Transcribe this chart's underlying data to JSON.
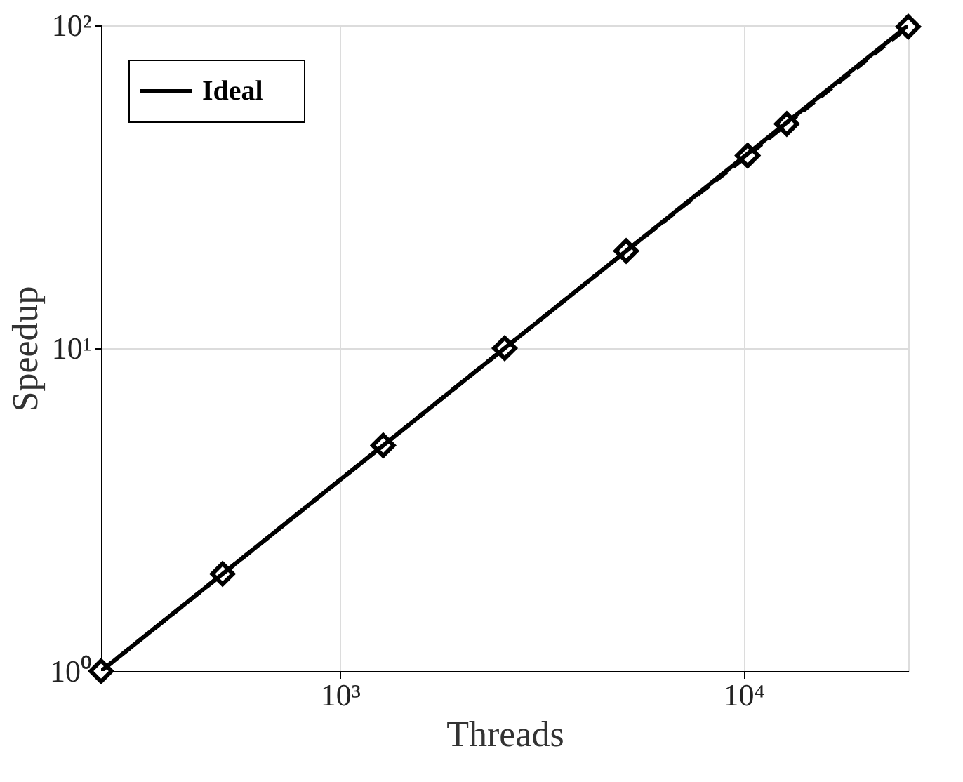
{
  "chart_data": {
    "type": "line",
    "xlabel": "Threads",
    "ylabel": "Speedup",
    "log": "xy",
    "grid": true,
    "legend": "top left",
    "xlim": [
      256,
      25600
    ],
    "ylim": [
      1,
      100
    ],
    "xticks": [
      {
        "value": 1000,
        "label": "10³"
      },
      {
        "value": 10000,
        "label": "10⁴"
      }
    ],
    "yticks": [
      {
        "value": 1,
        "label": "10⁰"
      },
      {
        "value": 10,
        "label": "10¹"
      },
      {
        "value": 100,
        "label": "10²"
      }
    ],
    "series": [
      {
        "color": "#000000",
        "line_style": "dashed",
        "marker": "diamond",
        "x": [
          256,
          512,
          1280,
          2560,
          5120,
          10240,
          12800,
          25600
        ],
        "values": [
          1,
          2,
          5,
          10,
          20,
          39.5,
          49.5,
          99
        ]
      },
      {
        "name": "Ideal",
        "color": "#000000",
        "line_style": "solid",
        "marker": "none",
        "x": [
          256,
          25600
        ],
        "values": [
          1,
          100
        ]
      }
    ]
  }
}
